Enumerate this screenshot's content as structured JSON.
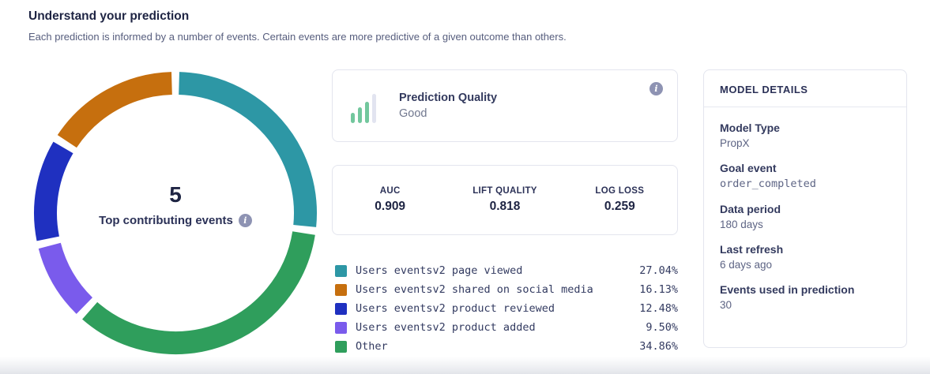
{
  "header": {
    "title": "Understand your prediction",
    "subtitle": "Each prediction is informed by a number of events. Certain events are more predictive of a given outcome than others."
  },
  "donut_center": {
    "count": "5",
    "label": "Top contributing events"
  },
  "prediction_quality": {
    "title": "Prediction Quality",
    "value": "Good"
  },
  "metrics": [
    {
      "label": "AUC",
      "value": "0.909"
    },
    {
      "label": "LIFT QUALITY",
      "value": "0.818"
    },
    {
      "label": "LOG LOSS",
      "value": "0.259"
    }
  ],
  "legend": [
    {
      "label": "Users eventsv2 page viewed",
      "pct": "27.04%",
      "color": "#2d97a5"
    },
    {
      "label": "Users eventsv2 shared on social media",
      "pct": "16.13%",
      "color": "#c66f0e"
    },
    {
      "label": "Users eventsv2 product reviewed",
      "pct": "12.48%",
      "color": "#1f30c0"
    },
    {
      "label": "Users eventsv2 product added",
      "pct": "9.50%",
      "color": "#7a5bec"
    },
    {
      "label": "Other",
      "pct": "34.86%",
      "color": "#2f9e5c"
    }
  ],
  "model_details": {
    "header": "MODEL DETAILS",
    "fields": [
      {
        "label": "Model Type",
        "value": "PropX"
      },
      {
        "label": "Goal event",
        "value": "order_completed"
      },
      {
        "label": "Data period",
        "value": "180 days"
      },
      {
        "label": "Last refresh",
        "value": "6 days ago"
      },
      {
        "label": "Events used in prediction",
        "value": "30"
      }
    ]
  },
  "icon_colors": {
    "quality_bar_green": "#72c79d",
    "quality_bar_gray": "#e2e4f0",
    "info_icon_bg": "#8e93b3"
  },
  "chart_data": {
    "type": "pie",
    "donut": true,
    "title": "Top contributing events",
    "center_count": 5,
    "slices": [
      {
        "label": "Users eventsv2 page viewed",
        "value": 27.04,
        "color": "#2d97a5"
      },
      {
        "label": "Users eventsv2 shared on social media",
        "value": 16.13,
        "color": "#c66f0e"
      },
      {
        "label": "Users eventsv2 product reviewed",
        "value": 12.48,
        "color": "#1f30c0"
      },
      {
        "label": "Users eventsv2 product added",
        "value": 9.5,
        "color": "#7a5bec"
      },
      {
        "label": "Other",
        "value": 34.86,
        "color": "#2f9e5c"
      }
    ],
    "clockwise_order_from_top": [
      0,
      4,
      3,
      2,
      1
    ],
    "legend_position": "right-of-chart"
  }
}
